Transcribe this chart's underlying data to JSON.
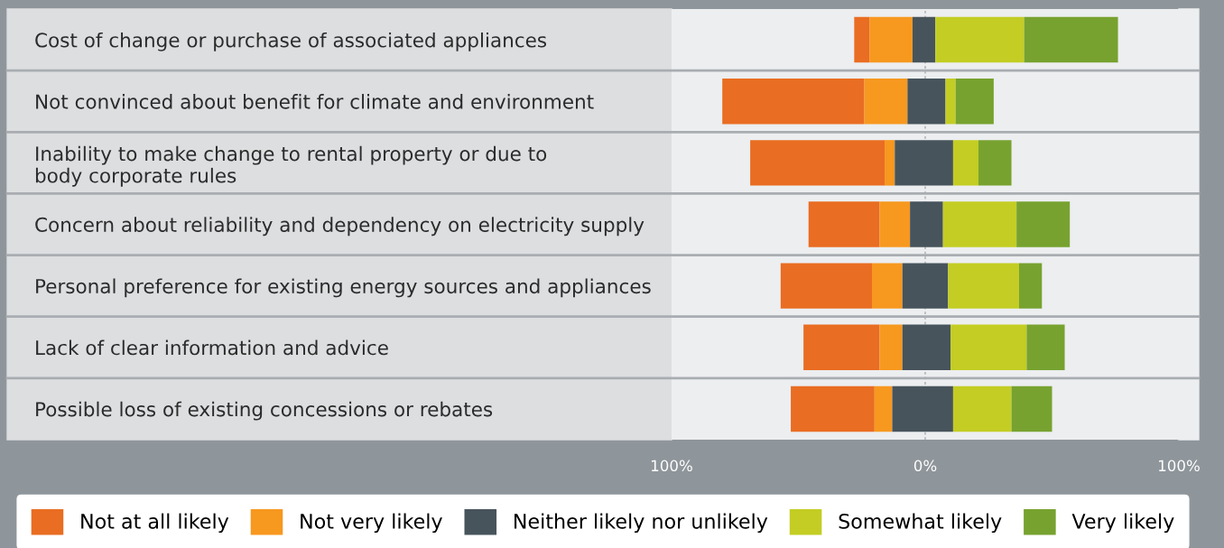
{
  "chart_data": {
    "type": "bar",
    "orientation": "horizontal",
    "categories": [
      "Cost of change or purchase of associated appliances",
      "Not convinced about benefit for climate and environment",
      "Inability to make change to rental property or due to\nbody corporate rules",
      "Concern about reliability and dependency on electricity supply",
      "Personal preference for existing energy sources and appliances",
      "Lack of clear information and advice",
      "Possible loss of existing concessions or rebates"
    ],
    "series": [
      {
        "name": "Not at all likely",
        "color": "#e96d22",
        "base": [
          -28,
          -80,
          -69,
          -46,
          -57,
          -48,
          -53
        ],
        "values": [
          6,
          56,
          53,
          28,
          36,
          30,
          33
        ]
      },
      {
        "name": "Not very likely",
        "color": "#f7981f",
        "base": [
          -22,
          -24,
          -16,
          -18,
          -21,
          -18,
          -20
        ],
        "values": [
          17,
          17,
          4,
          12,
          12,
          9,
          7
        ]
      },
      {
        "name": "Neither likely nor unlikely",
        "color": "#47545c",
        "base": [
          -5,
          -7,
          -12,
          -6,
          -9,
          -9,
          -13
        ],
        "values": [
          9,
          15,
          23,
          13,
          18,
          19,
          24
        ]
      },
      {
        "name": "Somewhat likely",
        "color": "#c3cd23",
        "base": [
          4,
          8,
          11,
          7,
          9,
          10,
          11
        ],
        "values": [
          35,
          4,
          10,
          29,
          28,
          30,
          23
        ]
      },
      {
        "name": "Very likely",
        "color": "#77a22f",
        "base": [
          39,
          12,
          21,
          36,
          37,
          40,
          34
        ],
        "values": [
          37,
          15,
          13,
          21,
          9,
          15,
          16
        ]
      }
    ],
    "xlim": [
      -100,
      100
    ],
    "xticks": [
      {
        "value": -100,
        "label": "100%"
      },
      {
        "value": 0,
        "label": "0%"
      },
      {
        "value": 100,
        "label": "100%"
      }
    ],
    "ref_lines": [
      {
        "axis": "x",
        "value": 0,
        "label": null,
        "color": "#a9adb1",
        "line_style": "dotted"
      }
    ],
    "legend": "bottom"
  }
}
